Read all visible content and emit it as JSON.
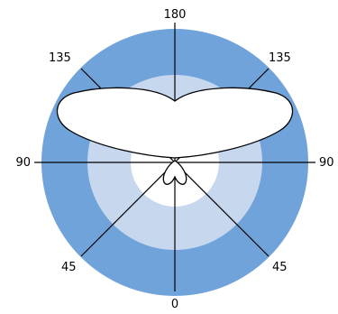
{
  "colors": {
    "outer_ring": "#6FA3DA",
    "middle_ring": "#C6D7EE",
    "inner_disc": "#FFFFFF",
    "lobes_fill": "#FFFFFF",
    "lines": "#000000",
    "outline": "#000000"
  },
  "labels": {
    "top": "180",
    "bottom": "0",
    "left": "90",
    "right": "90",
    "upper_left": "135",
    "upper_right": "135",
    "lower_left": "45",
    "lower_right": "45"
  }
}
